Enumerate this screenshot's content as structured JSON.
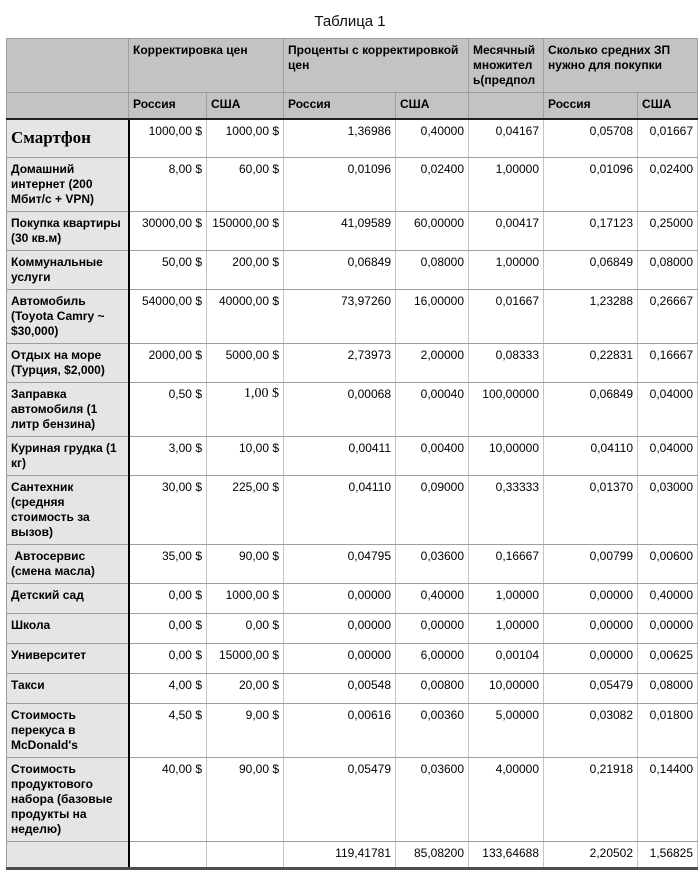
{
  "title": "Таблица 1",
  "colors": {
    "header_bg": "#c3c3c3",
    "row_label_bg": "#e5e5e5",
    "grid_line": "#9e9e9e",
    "heavy_divider": "#000000",
    "header_rule": "#1f1f1f",
    "bottom_rule": "#4d4d4d"
  },
  "table": {
    "group_headers": [
      {
        "label": "",
        "colspan": 1
      },
      {
        "label": "Корректировка цен",
        "colspan": 2
      },
      {
        "label": "Проценты с корректировкой цен",
        "colspan": 2
      },
      {
        "label": "Месячный множитель(предпол",
        "colspan": 1
      },
      {
        "label": "Сколько средних ЗП нужно для покупки",
        "colspan": 2
      }
    ],
    "sub_headers": [
      "",
      "Россия",
      "США",
      "Россия",
      "США",
      "",
      "Россия",
      "США"
    ],
    "rows": [
      {
        "label": "Смартфон",
        "serif_label": true,
        "values": [
          "1000,00 $",
          "1000,00 $",
          "1,36986",
          "0,40000",
          "0,04167",
          "0,05708",
          "0,01667"
        ]
      },
      {
        "label": "Домашний интернет (200 Мбит/с + VPN)",
        "values": [
          "8,00 $",
          "60,00 $",
          "0,01096",
          "0,02400",
          "1,00000",
          "0,01096",
          "0,02400"
        ]
      },
      {
        "label": "Покупка квартиры (30 кв.м)",
        "values": [
          "30000,00 $",
          "150000,00 $",
          "41,09589",
          "60,00000",
          "0,00417",
          "0,17123",
          "0,25000"
        ]
      },
      {
        "label": "Коммунальные услуги",
        "values": [
          "50,00 $",
          "200,00 $",
          "0,06849",
          "0,08000",
          "1,00000",
          "0,06849",
          "0,08000"
        ]
      },
      {
        "label": "Автомобиль (Toyota Camry ~ $30,000)",
        "values": [
          "54000,00 $",
          "40000,00 $",
          "73,97260",
          "16,00000",
          "0,01667",
          "1,23288",
          "0,26667"
        ]
      },
      {
        "label": "Отдых на море (Турция, $2,000)",
        "values": [
          "2000,00 $",
          "5000,00 $",
          "2,73973",
          "2,00000",
          "0,08333",
          "0,22831",
          "0,16667"
        ]
      },
      {
        "label": "Заправка автомобиля (1 литр бензина)",
        "serif_values": [
          1
        ],
        "values": [
          "0,50 $",
          "1,00 $",
          "0,00068",
          "0,00040",
          "100,00000",
          "0,06849",
          "0,04000"
        ]
      },
      {
        "label": "Куриная грудка (1 кг)",
        "values": [
          "3,00 $",
          "10,00 $",
          "0,00411",
          "0,00400",
          "10,00000",
          "0,04110",
          "0,04000"
        ]
      },
      {
        "label": "Сантехник (средняя стоимость за вызов)",
        "values": [
          "30,00 $",
          "225,00 $",
          "0,04110",
          "0,09000",
          "0,33333",
          "0,01370",
          "0,03000"
        ]
      },
      {
        "label": " Автосервис (смена масла)",
        "values": [
          "35,00 $",
          "90,00 $",
          "0,04795",
          "0,03600",
          "0,16667",
          "0,00799",
          "0,00600"
        ]
      },
      {
        "label": "Детский сад",
        "values": [
          "0,00 $",
          "1000,00 $",
          "0,00000",
          "0,40000",
          "1,00000",
          "0,00000",
          "0,40000"
        ]
      },
      {
        "label": "Школа",
        "values": [
          "0,00 $",
          "0,00 $",
          "0,00000",
          "0,00000",
          "1,00000",
          "0,00000",
          "0,00000"
        ]
      },
      {
        "label": "Университет",
        "values": [
          "0,00 $",
          "15000,00 $",
          "0,00000",
          "6,00000",
          "0,00104",
          "0,00000",
          "0,00625"
        ]
      },
      {
        "label": "Такси",
        "values": [
          "4,00 $",
          "20,00 $",
          "0,00548",
          "0,00800",
          "10,00000",
          "0,05479",
          "0,08000"
        ]
      },
      {
        "label": "Стоимость перекуса в McDonald's",
        "values": [
          "4,50 $",
          "9,00 $",
          "0,00616",
          "0,00360",
          "5,00000",
          "0,03082",
          "0,01800"
        ]
      },
      {
        "label": "Стоимость продуктового набора (базовые продукты на неделю)",
        "values": [
          "40,00 $",
          "90,00 $",
          "0,05479",
          "0,03600",
          "4,00000",
          "0,21918",
          "0,14400"
        ]
      }
    ],
    "total_row": {
      "label": "",
      "values": [
        "",
        "",
        "119,41781",
        "85,08200",
        "133,64688",
        "2,20502",
        "1,56825"
      ]
    }
  }
}
